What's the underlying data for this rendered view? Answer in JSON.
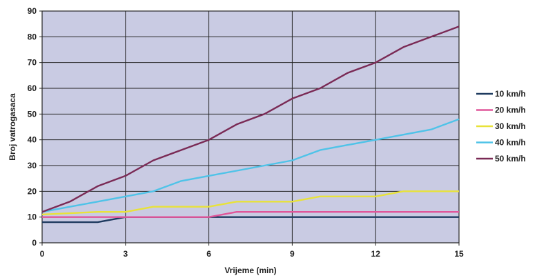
{
  "chart_data": {
    "type": "line",
    "xlabel": "Vrijeme (min)",
    "ylabel": "Broj vatrogasaca",
    "xlim": [
      0,
      15
    ],
    "ylim": [
      0,
      90
    ],
    "xticks": [
      0,
      3,
      6,
      9,
      12,
      15
    ],
    "yticks": [
      0,
      10,
      20,
      30,
      40,
      50,
      60,
      70,
      80,
      90
    ],
    "grid": true,
    "legend_position": "right",
    "plot_background": "#c9cbe3",
    "series": [
      {
        "name": "10 km/h",
        "color": "#1e3a5f",
        "points": [
          [
            0,
            8
          ],
          [
            2,
            8
          ],
          [
            3,
            10
          ],
          [
            6,
            10
          ],
          [
            15,
            10
          ]
        ]
      },
      {
        "name": "20 km/h",
        "color": "#e0569a",
        "points": [
          [
            0,
            10
          ],
          [
            6,
            10
          ],
          [
            7,
            12
          ],
          [
            15,
            12
          ]
        ]
      },
      {
        "name": "30 km/h",
        "color": "#e8e23a",
        "points": [
          [
            0,
            11
          ],
          [
            2,
            12
          ],
          [
            3,
            12
          ],
          [
            4,
            14
          ],
          [
            6,
            14
          ],
          [
            7,
            16
          ],
          [
            9,
            16
          ],
          [
            10,
            18
          ],
          [
            12,
            18
          ],
          [
            13,
            20
          ],
          [
            15,
            20
          ]
        ]
      },
      {
        "name": "40 km/h",
        "color": "#4fc3e8",
        "points": [
          [
            0,
            12
          ],
          [
            1,
            14
          ],
          [
            2,
            16
          ],
          [
            3,
            18
          ],
          [
            4,
            20
          ],
          [
            5,
            24
          ],
          [
            6,
            26
          ],
          [
            7,
            28
          ],
          [
            8,
            30
          ],
          [
            9,
            32
          ],
          [
            10,
            36
          ],
          [
            11,
            38
          ],
          [
            12,
            40
          ],
          [
            13,
            42
          ],
          [
            14,
            44
          ],
          [
            15,
            48
          ]
        ]
      },
      {
        "name": "50 km/h",
        "color": "#7a2a55",
        "points": [
          [
            0,
            12
          ],
          [
            1,
            16
          ],
          [
            2,
            22
          ],
          [
            3,
            26
          ],
          [
            4,
            32
          ],
          [
            5,
            36
          ],
          [
            6,
            40
          ],
          [
            7,
            46
          ],
          [
            8,
            50
          ],
          [
            9,
            56
          ],
          [
            10,
            60
          ],
          [
            11,
            66
          ],
          [
            12,
            70
          ],
          [
            13,
            76
          ],
          [
            14,
            80
          ],
          [
            15,
            84
          ]
        ]
      }
    ]
  }
}
